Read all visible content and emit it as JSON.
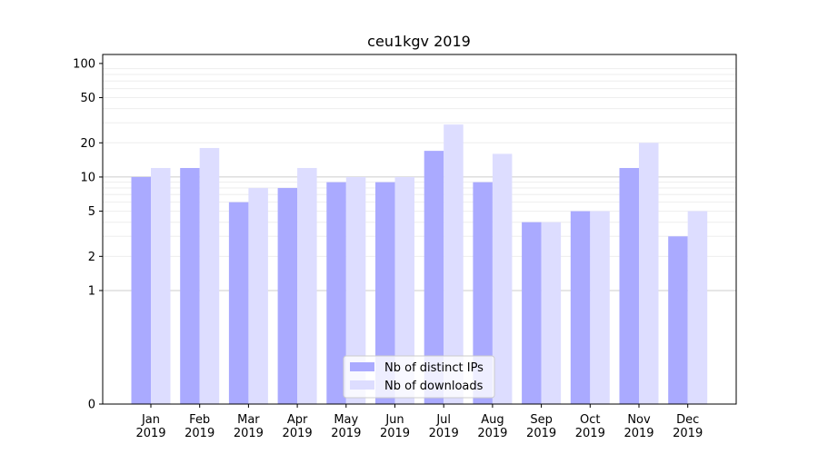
{
  "chart_data": {
    "type": "bar",
    "title": "ceu1kgv 2019",
    "xlabel": "",
    "ylabel": "",
    "y_scale": "symlog",
    "ylim": [
      0,
      120
    ],
    "yticks": [
      0,
      1,
      2,
      5,
      10,
      20,
      50,
      100
    ],
    "categories": [
      "Jan 2019",
      "Feb 2019",
      "Mar 2019",
      "Apr 2019",
      "May 2019",
      "Jun 2019",
      "Jul 2019",
      "Aug 2019",
      "Sep 2019",
      "Oct 2019",
      "Nov 2019",
      "Dec 2019"
    ],
    "series": [
      {
        "name": "Nb of distinct IPs",
        "color": "#aaaaff",
        "values": [
          10,
          12,
          6,
          8,
          9,
          9,
          17,
          9,
          4,
          5,
          12,
          3
        ]
      },
      {
        "name": "Nb of downloads",
        "color": "#ddddff",
        "values": [
          12,
          18,
          8,
          12,
          10,
          10,
          29,
          16,
          4,
          5,
          20,
          5
        ]
      }
    ],
    "legend_position": "lower-center",
    "grid": true
  }
}
